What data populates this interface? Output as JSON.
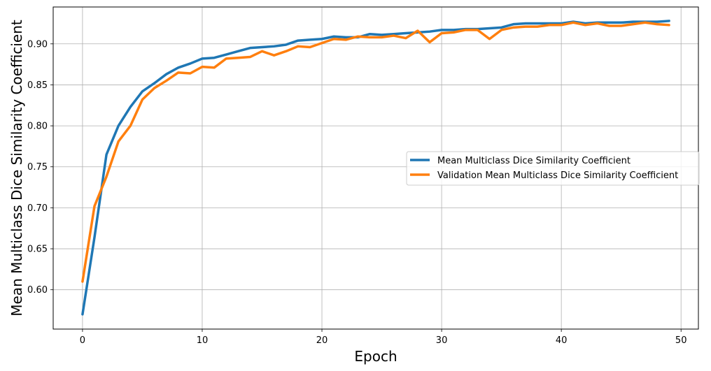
{
  "chart_data": {
    "type": "line",
    "title": "",
    "xlabel": "Epoch",
    "ylabel": "Mean Multiclass Dice Similarity Coefficient",
    "xlim": [
      -2.45,
      51.45
    ],
    "ylim": [
      0.552,
      0.945
    ],
    "xticks": [
      0,
      10,
      20,
      30,
      40,
      50
    ],
    "xtick_labels": [
      "0",
      "10",
      "20",
      "30",
      "40",
      "50"
    ],
    "yticks": [
      0.6,
      0.65,
      0.7,
      0.75,
      0.8,
      0.85,
      0.9
    ],
    "ytick_labels": [
      "0.60",
      "0.65",
      "0.70",
      "0.75",
      "0.80",
      "0.85",
      "0.90"
    ],
    "grid": true,
    "legend_position": "center-right",
    "x": [
      0,
      1,
      2,
      3,
      4,
      5,
      6,
      7,
      8,
      9,
      10,
      11,
      12,
      13,
      14,
      15,
      16,
      17,
      18,
      19,
      20,
      21,
      22,
      23,
      24,
      25,
      26,
      27,
      28,
      29,
      30,
      31,
      32,
      33,
      34,
      35,
      36,
      37,
      38,
      39,
      40,
      41,
      42,
      43,
      44,
      45,
      46,
      47,
      48,
      49
    ],
    "series": [
      {
        "name": "Mean Multiclass Dice Similarity Coefficient",
        "color": "#1f77b4",
        "values": [
          0.57,
          0.664,
          0.765,
          0.8,
          0.823,
          0.842,
          0.852,
          0.863,
          0.871,
          0.876,
          0.882,
          0.883,
          0.887,
          0.891,
          0.895,
          0.896,
          0.897,
          0.899,
          0.904,
          0.905,
          0.906,
          0.909,
          0.908,
          0.908,
          0.912,
          0.911,
          0.912,
          0.913,
          0.914,
          0.915,
          0.917,
          0.917,
          0.918,
          0.918,
          0.919,
          0.92,
          0.924,
          0.925,
          0.925,
          0.925,
          0.925,
          0.927,
          0.925,
          0.926,
          0.926,
          0.926,
          0.927,
          0.927,
          0.927,
          0.928
        ]
      },
      {
        "name": "Validation Mean Multiclass Dice Similarity Coefficient",
        "color": "#ff7f0e",
        "values": [
          0.61,
          0.702,
          0.738,
          0.781,
          0.8,
          0.832,
          0.846,
          0.855,
          0.865,
          0.864,
          0.872,
          0.871,
          0.882,
          0.883,
          0.884,
          0.891,
          0.886,
          0.891,
          0.897,
          0.896,
          0.901,
          0.906,
          0.905,
          0.909,
          0.908,
          0.908,
          0.91,
          0.907,
          0.916,
          0.902,
          0.913,
          0.914,
          0.917,
          0.917,
          0.906,
          0.917,
          0.92,
          0.921,
          0.921,
          0.923,
          0.923,
          0.926,
          0.923,
          0.925,
          0.922,
          0.922,
          0.924,
          0.926,
          0.924,
          0.923
        ]
      }
    ]
  }
}
